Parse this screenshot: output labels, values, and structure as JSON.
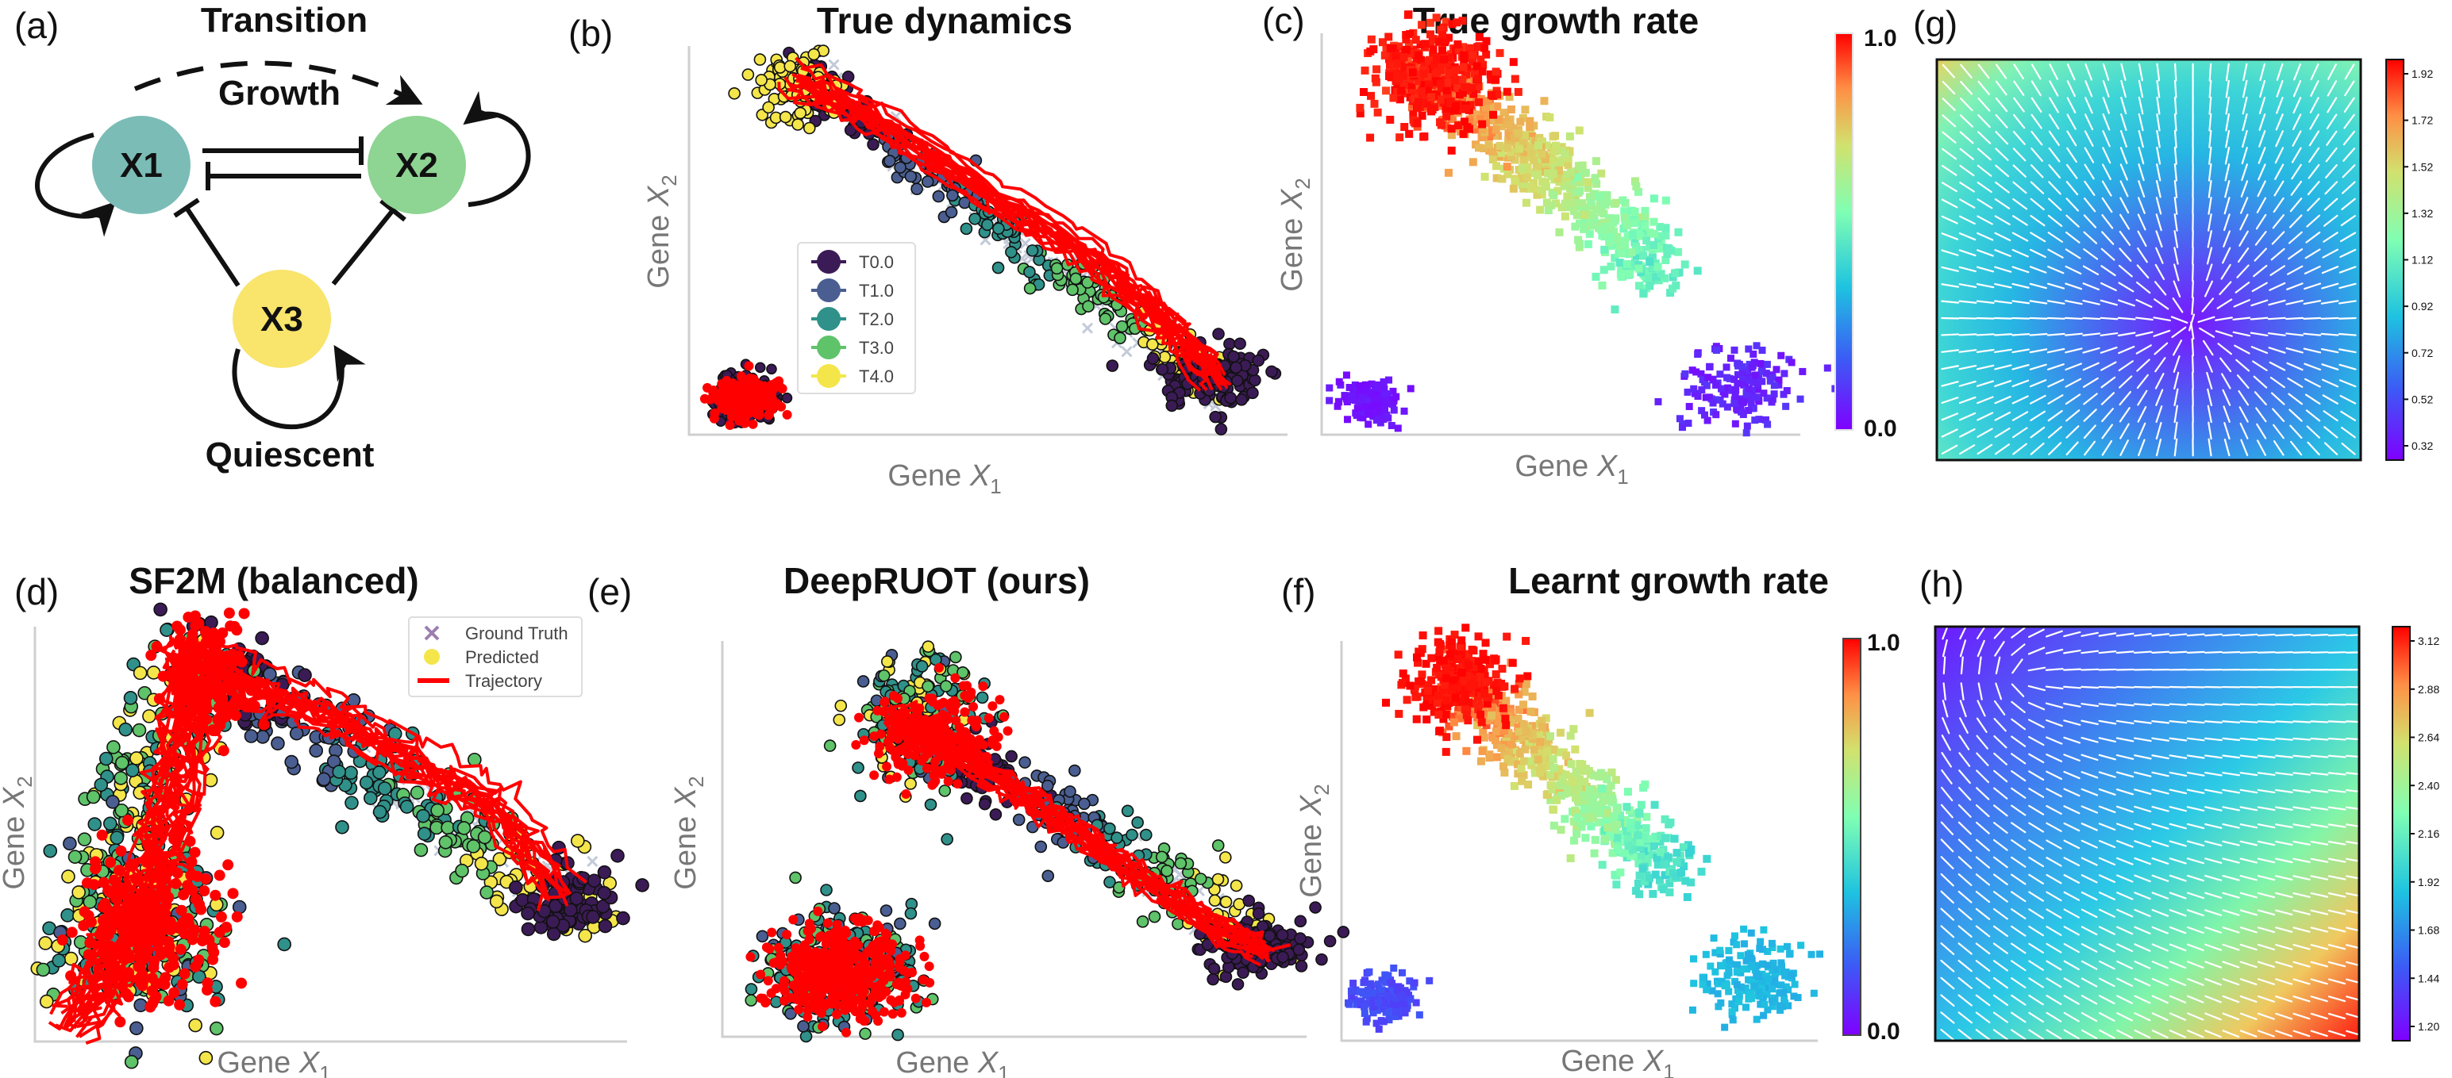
{
  "panel_labels": {
    "a": "(a)",
    "b": "(b)",
    "c": "(c)",
    "d": "(d)",
    "e": "(e)",
    "f": "(f)",
    "g": "(g)",
    "h": "(h)"
  },
  "network": {
    "nodes": [
      "X1",
      "X2",
      "X3"
    ],
    "edge_labels": {
      "transition": "Transition",
      "growth": "Growth",
      "quiescent": "Quiescent"
    },
    "colors": {
      "X1": "#7bbcb6",
      "X2": "#8ed493",
      "X3": "#f9e46c"
    }
  },
  "axes": {
    "xlabel_prefix": "Gene ",
    "ylabel_prefix": "Gene ",
    "x_var": "X",
    "x_sub": "1",
    "y_var": "X",
    "y_sub": "2"
  },
  "chart_data": [
    {
      "id": "b",
      "type": "scatter",
      "title": "True dynamics",
      "legend": {
        "placement": "center-left",
        "entries": [
          {
            "name": "T0.0",
            "color": "#3b1b55"
          },
          {
            "name": "T1.0",
            "color": "#4a5e91"
          },
          {
            "name": "T2.0",
            "color": "#2f918a"
          },
          {
            "name": "T3.0",
            "color": "#5fc36a"
          },
          {
            "name": "T4.0",
            "color": "#f4e64a"
          }
        ]
      },
      "series_colors": {
        "trajectory": "#ff0000",
        "ground_truth": "#b5bfd6"
      }
    },
    {
      "id": "c",
      "type": "scatter",
      "title": "True growth rate",
      "colorbar": {
        "min_label": "0.0",
        "max_label": "1.0",
        "range": [
          0,
          1
        ]
      }
    },
    {
      "id": "d",
      "type": "scatter",
      "title": "SF2M (balanced)",
      "legend": {
        "placement": "top-right",
        "entries": [
          {
            "name": "Ground Truth",
            "marker": "x",
            "color": "#9b7fb0"
          },
          {
            "name": "Predicted",
            "marker": "circle",
            "color": "#f4e64a"
          },
          {
            "name": "Trajectory",
            "marker": "line",
            "color": "#ff0000"
          }
        ]
      }
    },
    {
      "id": "e",
      "type": "scatter",
      "title": "DeepRUOT (ours)"
    },
    {
      "id": "f",
      "type": "scatter",
      "title": "Learnt growth rate",
      "colorbar": {
        "min_label": "0.0",
        "max_label": "1.0",
        "range": [
          0,
          1
        ]
      }
    },
    {
      "id": "g",
      "type": "heatmap",
      "colorbar": {
        "ticks": [
          "1.92",
          "1.72",
          "1.52",
          "1.32",
          "1.12",
          "0.92",
          "0.72",
          "0.52",
          "0.32"
        ],
        "range": [
          0.32,
          2.02
        ]
      }
    },
    {
      "id": "h",
      "type": "heatmap",
      "colorbar": {
        "ticks": [
          "3.12",
          "2.88",
          "2.64",
          "2.40",
          "2.16",
          "1.92",
          "1.68",
          "1.44",
          "1.20"
        ],
        "range": [
          1.2,
          3.22
        ]
      }
    }
  ]
}
